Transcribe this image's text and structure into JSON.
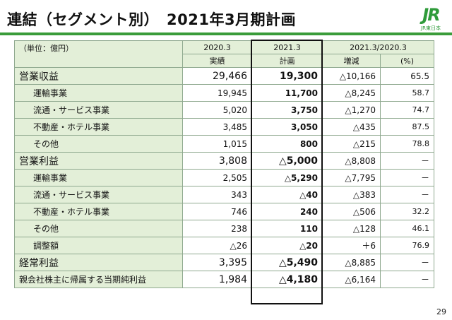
{
  "title": "連結（セグメント別）　2021年3月期計画",
  "logo": {
    "mark": "JR",
    "text": "JR東日本"
  },
  "table": {
    "unit_label": "（単位：億円）",
    "col_2020": "2020.3",
    "col_2021": "2021.3",
    "col_change": "2021.3/2020.3",
    "sub_actual": "実績",
    "sub_plan": "計画",
    "sub_diff": "増減",
    "sub_pct": "(%)",
    "rows": [
      {
        "label": "営業収益",
        "actual": "29,466",
        "plan": "19,300",
        "diff": "△10,166",
        "pct": "65.5"
      },
      {
        "label": "運輸事業",
        "actual": "19,945",
        "plan": "11,700",
        "diff": "△8,245",
        "pct": "58.7"
      },
      {
        "label": "流通・サービス事業",
        "actual": "5,020",
        "plan": "3,750",
        "diff": "△1,270",
        "pct": "74.7"
      },
      {
        "label": "不動産・ホテル事業",
        "actual": "3,485",
        "plan": "3,050",
        "diff": "△435",
        "pct": "87.5"
      },
      {
        "label": "その他",
        "actual": "1,015",
        "plan": "800",
        "diff": "△215",
        "pct": "78.8"
      },
      {
        "label": "営業利益",
        "actual": "3,808",
        "plan": "△5,000",
        "diff": "△8,808",
        "pct": "－"
      },
      {
        "label": "運輸事業",
        "actual": "2,505",
        "plan": "△5,290",
        "diff": "△7,795",
        "pct": "－"
      },
      {
        "label": "流通・サービス事業",
        "actual": "343",
        "plan": "△40",
        "diff": "△383",
        "pct": "－"
      },
      {
        "label": "不動産・ホテル事業",
        "actual": "746",
        "plan": "240",
        "diff": "△506",
        "pct": "32.2"
      },
      {
        "label": "その他",
        "actual": "238",
        "plan": "110",
        "diff": "△128",
        "pct": "46.1"
      },
      {
        "label": "調整額",
        "actual": "△26",
        "plan": "△20",
        "diff": "＋6",
        "pct": "76.9"
      },
      {
        "label": "経常利益",
        "actual": "3,395",
        "plan": "△5,490",
        "diff": "△8,885",
        "pct": "－"
      },
      {
        "label": "親会社株主に帰属する当期純利益",
        "actual": "1,984",
        "plan": "△4,180",
        "diff": "△6,164",
        "pct": "－"
      }
    ]
  },
  "page_number": "29",
  "colors": {
    "accent_green": "#3a9c3a",
    "label_bg": "#e3efd8",
    "grid": "#8fa98f"
  }
}
